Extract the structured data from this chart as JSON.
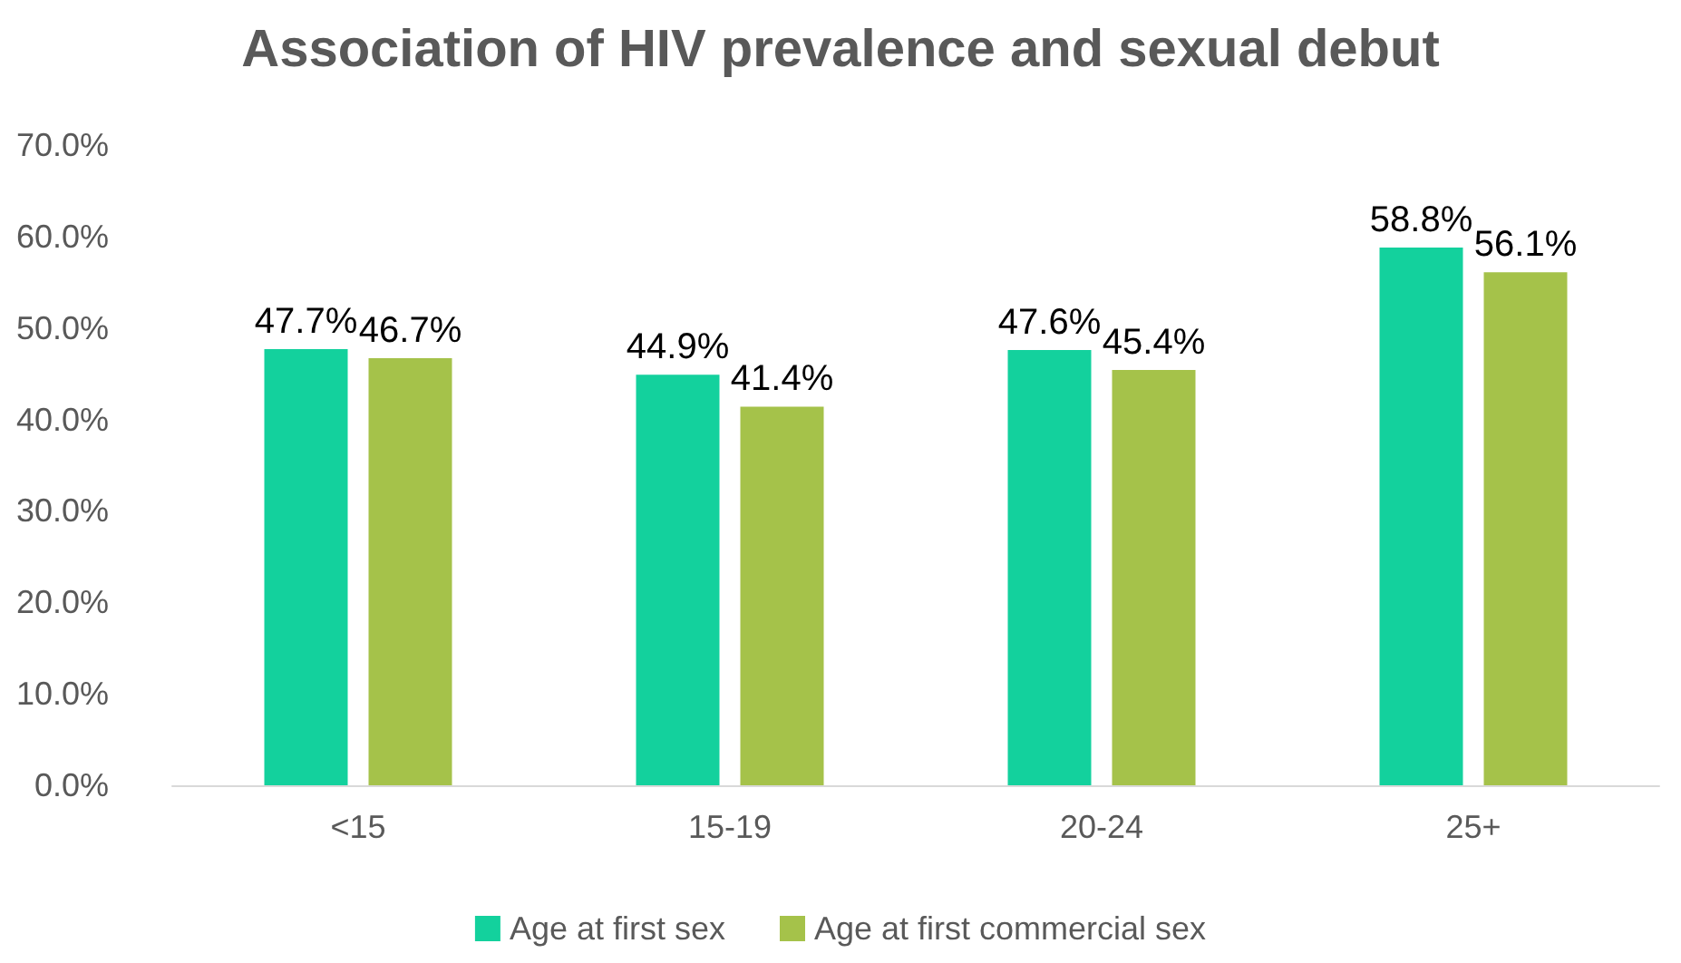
{
  "chart_data": {
    "type": "bar",
    "title": "Association of HIV prevalence and sexual debut",
    "categories": [
      "<15",
      "15-19",
      "20-24",
      "25+"
    ],
    "series": [
      {
        "name": "Age at first sex",
        "color": "#13d19d",
        "values": [
          47.7,
          44.9,
          47.6,
          58.8
        ],
        "value_labels": [
          "47.7%",
          "44.9%",
          "47.6%",
          "58.8%"
        ]
      },
      {
        "name": "Age at first commercial sex",
        "color": "#a5c24a",
        "values": [
          46.7,
          41.4,
          45.4,
          56.1
        ],
        "value_labels": [
          "46.7%",
          "41.4%",
          "45.4%",
          "56.1%"
        ]
      }
    ],
    "ylim": [
      0,
      70
    ],
    "yticks": [
      {
        "value": 0,
        "label": "0.0%"
      },
      {
        "value": 10,
        "label": "10.0%"
      },
      {
        "value": 20,
        "label": "20.0%"
      },
      {
        "value": 30,
        "label": "30.0%"
      },
      {
        "value": 40,
        "label": "40.0%"
      },
      {
        "value": 50,
        "label": "50.0%"
      },
      {
        "value": 60,
        "label": "60.0%"
      },
      {
        "value": 70,
        "label": "70.0%"
      }
    ],
    "grid": false,
    "legend": "bottom"
  }
}
